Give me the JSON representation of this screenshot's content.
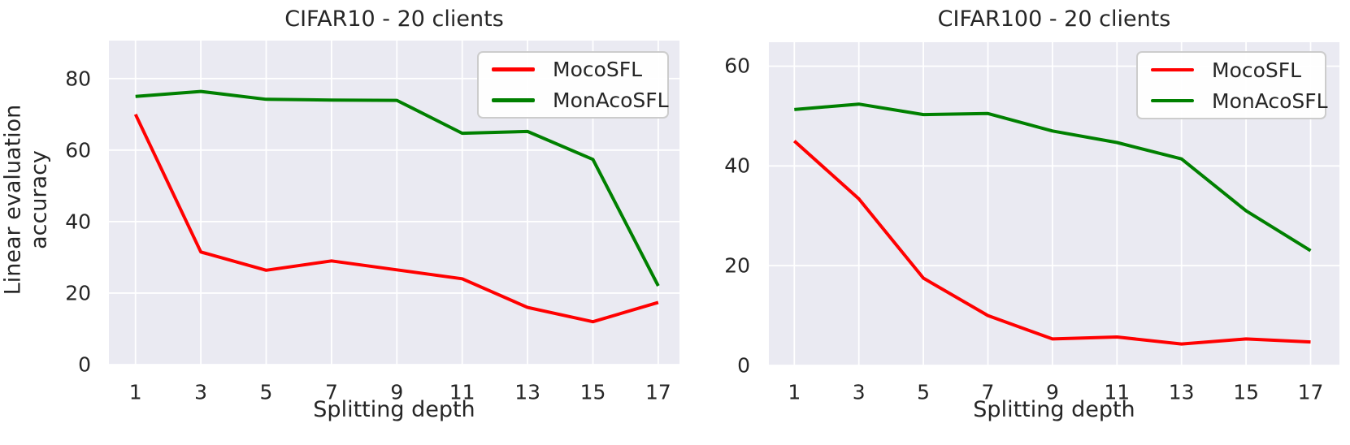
{
  "figure": {
    "background": "#ffffff",
    "plot_bg": "#eaeaf2",
    "grid_color": "#ffffff",
    "text_color": "#262626",
    "legend_border": "#cccccc"
  },
  "chart_data": [
    {
      "type": "line",
      "title": "CIFAR10 - 20 clients",
      "xlabel": "Splitting depth",
      "ylabel": "Linear evaluation\naccuracy",
      "x": [
        1,
        3,
        5,
        7,
        9,
        11,
        13,
        15,
        17
      ],
      "xticks": [
        1,
        3,
        5,
        7,
        9,
        11,
        13,
        15,
        17
      ],
      "yticks": [
        0,
        20,
        40,
        60,
        80
      ],
      "xlim": [
        0.2,
        17.8
      ],
      "ylim": [
        0,
        90.7
      ],
      "grid": true,
      "legend_position": "upper right",
      "series": [
        {
          "name": "MocoSFL",
          "color": "#ff0000",
          "values": [
            70,
            31.5,
            26.4,
            29,
            26.5,
            24,
            16,
            12,
            17.4
          ]
        },
        {
          "name": "MonAcoSFL",
          "color": "#008000",
          "values": [
            75,
            76.4,
            74.2,
            74,
            73.9,
            64.7,
            65.2,
            57.4,
            22
          ]
        }
      ]
    },
    {
      "type": "line",
      "title": "CIFAR100 - 20 clients",
      "xlabel": "Splitting depth",
      "ylabel": "",
      "x": [
        1,
        3,
        5,
        7,
        9,
        11,
        13,
        15,
        17
      ],
      "xticks": [
        1,
        3,
        5,
        7,
        9,
        11,
        13,
        15,
        17
      ],
      "yticks": [
        0,
        20,
        40,
        60
      ],
      "xlim": [
        0.2,
        17.8
      ],
      "ylim": [
        0,
        64.8
      ],
      "grid": true,
      "legend_position": "upper right",
      "series": [
        {
          "name": "MocoSFL",
          "color": "#ff0000",
          "values": [
            45,
            33.4,
            17.5,
            10,
            5.3,
            5.7,
            4.3,
            5.3,
            4.7
          ]
        },
        {
          "name": "MonAcoSFL",
          "color": "#008000",
          "values": [
            51.3,
            52.4,
            50.3,
            50.5,
            47,
            44.7,
            41.4,
            31,
            23
          ]
        }
      ]
    }
  ]
}
